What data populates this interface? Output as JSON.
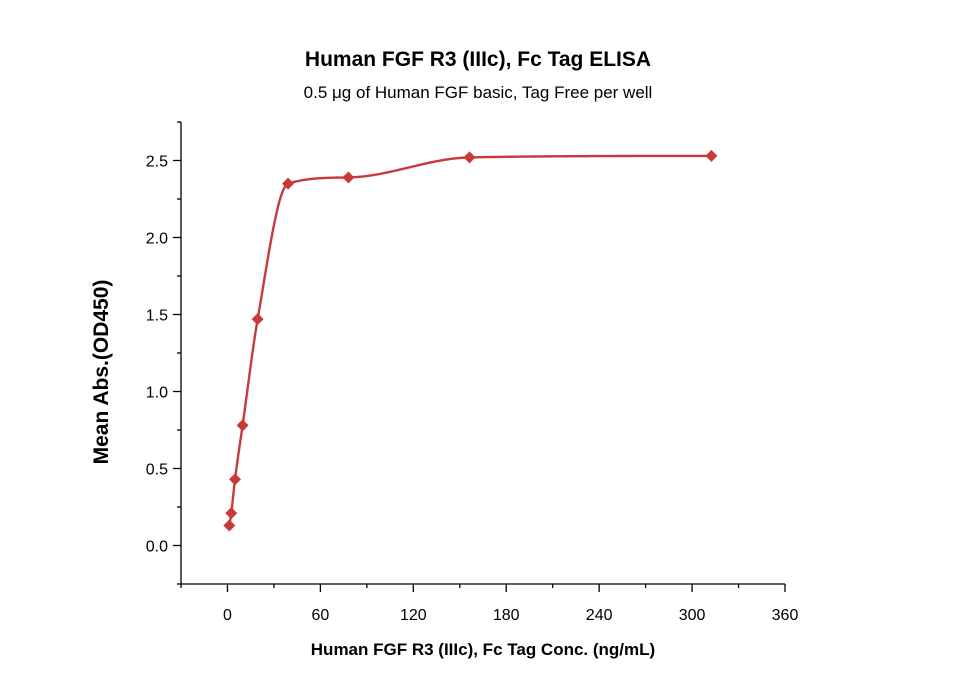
{
  "chart_data": {
    "type": "scatter",
    "title": "Human FGF R3 (IIIc), Fc Tag ELISA",
    "subtitle": "0.5 μg of Human FGF basic, Tag Free per well",
    "xlabel": "Human FGF R3 (IIIc), Fc Tag Conc. (ng/mL)",
    "ylabel": "Mean Abs.(OD450)",
    "xlim": [
      -30,
      360
    ],
    "ylim": [
      -0.25,
      2.75
    ],
    "xticks": [
      0,
      60,
      120,
      180,
      240,
      300,
      360
    ],
    "xtick_labels": [
      "0",
      "60",
      "120",
      "180",
      "240",
      "300",
      "360"
    ],
    "yticks": [
      0,
      0.5,
      1,
      1.5,
      2,
      2.5
    ],
    "ytick_labels": [
      "0.0",
      "0.5",
      "1.0",
      "1.5",
      "2.0",
      "2.5"
    ],
    "color": "#c83a3a",
    "grid": false,
    "series": [
      {
        "x": [
          1.22,
          2.44,
          4.88,
          9.77,
          19.5,
          39.1,
          78.1,
          156.3,
          312.5
        ],
        "y": [
          0.13,
          0.21,
          0.43,
          0.78,
          1.47,
          2.35,
          2.39,
          2.52,
          2.53
        ],
        "fit": "4PL"
      }
    ]
  }
}
